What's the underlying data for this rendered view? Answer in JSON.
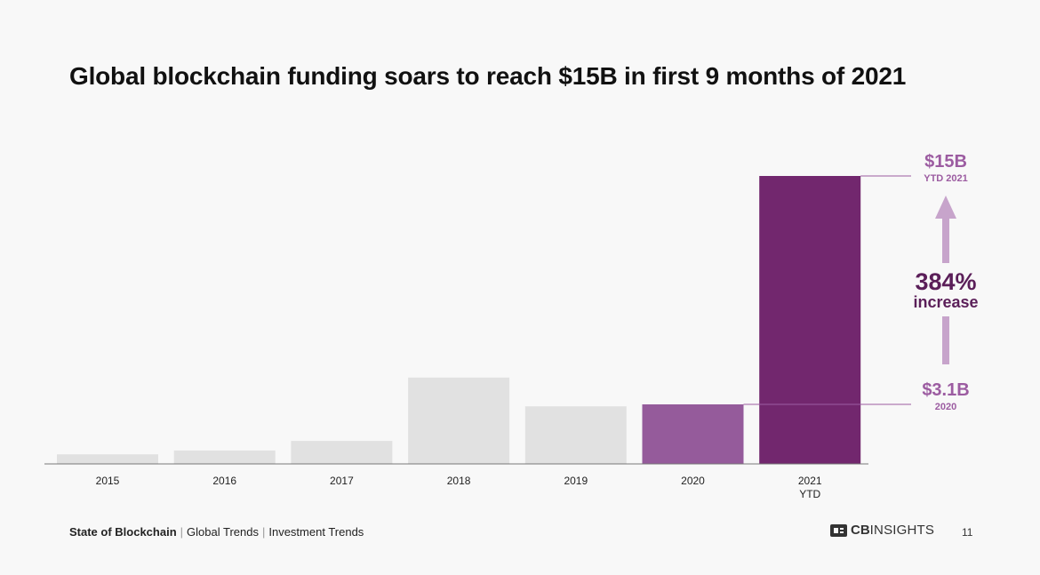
{
  "title": "Global blockchain funding soars to reach $15B in first 9 months of 2021",
  "chart_data": {
    "type": "bar",
    "title": "Global blockchain funding soars to reach $15B in first 9 months of 2021",
    "categories": [
      "2015",
      "2016",
      "2017",
      "2018",
      "2019",
      "2020",
      "2021\nYTD"
    ],
    "values": [
      0.5,
      0.7,
      1.2,
      4.5,
      3.0,
      3.1,
      15
    ],
    "units": "$B",
    "ylim": [
      0,
      15
    ],
    "grid": false,
    "colors": [
      "#e1e1e1",
      "#e1e1e1",
      "#e1e1e1",
      "#e1e1e1",
      "#e1e1e1",
      "#955b9b",
      "#72276e"
    ],
    "annotations": {
      "top_value": "$15B",
      "top_sub": "YTD 2021",
      "bottom_value": "$3.1B",
      "bottom_sub": "2020",
      "change_pct": "384%",
      "change_word": "increase"
    }
  },
  "colors": {
    "annotation": "#9c5ca1",
    "change_text": "#5b1f59",
    "arrow": "#c7a4cb",
    "axis": "#777777",
    "grey_bar": "#e1e1e1"
  },
  "footer": {
    "section": "State of Blockchain",
    "crumb1": "Global Trends",
    "crumb2": "Investment Trends",
    "separator": "|",
    "brand_cb": "CB",
    "brand_insights": "INSIGHTS",
    "page": "11"
  },
  "icons": {
    "brand": "cbinsights-logo-icon"
  }
}
